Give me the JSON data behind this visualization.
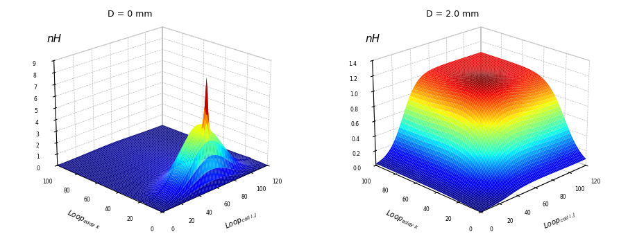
{
  "plot1": {
    "title": "D = 0 mm",
    "ylabel": "nH",
    "xlabel_coil": "Loop$_{coil\\ i,j}$",
    "xlabel_eddy": "Loop$_{eddy\\ k}$",
    "xlim": [
      0,
      120
    ],
    "ylim": [
      0,
      100
    ],
    "zlim": [
      0,
      9
    ],
    "zticks": [
      0,
      1,
      2,
      3,
      4,
      5,
      6,
      7,
      8,
      9
    ],
    "xticks": [
      0,
      20,
      40,
      60,
      80,
      100,
      120
    ],
    "yticks": [
      0,
      10,
      20,
      30,
      40,
      50,
      60,
      70,
      80,
      90,
      100
    ],
    "elev": 22,
    "azim": 225
  },
  "plot2": {
    "title": "D = 2.0 mm",
    "ylabel": "nH",
    "xlabel_coil": "Loop$_{coil\\ i,j}$",
    "xlabel_eddy": "Loop$_{eddy\\ k}$",
    "xlim": [
      0,
      120
    ],
    "ylim": [
      0,
      100
    ],
    "zlim": [
      0,
      1.4
    ],
    "zticks": [
      0,
      0.2,
      0.4,
      0.6,
      0.8,
      1.0,
      1.2,
      1.4
    ],
    "xticks": [
      0,
      20,
      40,
      60,
      80,
      100,
      120
    ],
    "yticks": [
      0,
      10,
      20,
      30,
      40,
      50,
      60,
      70,
      80,
      90,
      100
    ],
    "elev": 22,
    "azim": 225
  }
}
